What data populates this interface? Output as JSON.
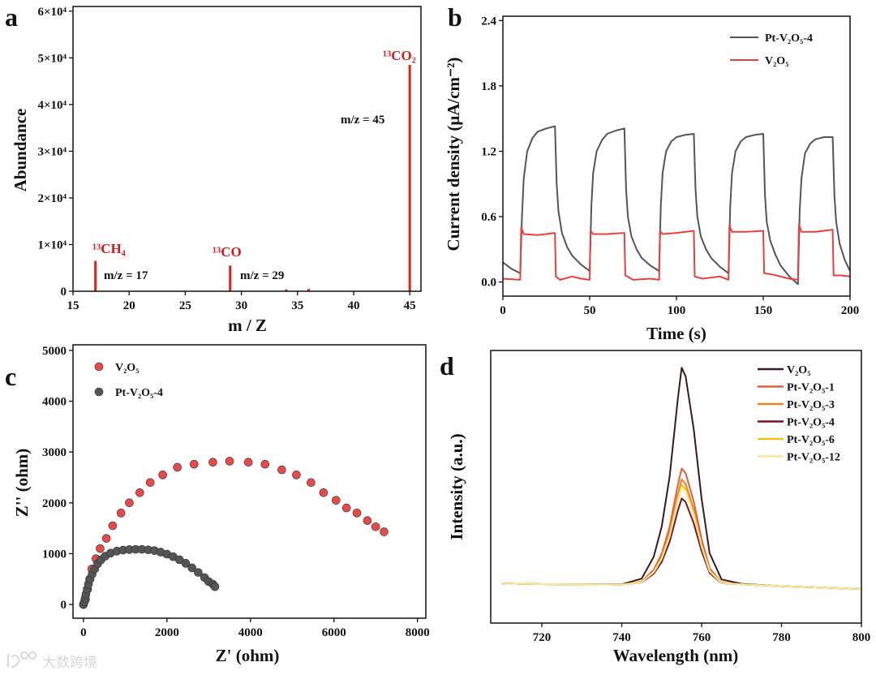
{
  "panel_letters": [
    "a",
    "b",
    "c",
    "d"
  ],
  "watermark": "大数跨境",
  "annotations_a": {
    "ch4": "¹³CH₄",
    "ch4_mz": "m/z = 17",
    "co": "¹³CO",
    "co_mz": "m/z = 29",
    "co2": "¹³CO₂",
    "co2_mz": "m/z = 45"
  },
  "chart_data": [
    {
      "type": "bar",
      "panel": "a",
      "xlabel": "m / Z",
      "ylabel": "Abundance",
      "xlim": [
        15,
        46
      ],
      "ylim": [
        0,
        61000
      ],
      "xticks": [
        15,
        20,
        25,
        30,
        35,
        40,
        45
      ],
      "xtick_labels": [
        "15",
        "20",
        "25",
        "30",
        "35",
        "40",
        "45"
      ],
      "yticks": [
        0,
        10000,
        20000,
        30000,
        40000,
        50000,
        60000
      ],
      "ytick_labels": [
        "0",
        "1×10⁴",
        "2×10⁴",
        "3×10⁴",
        "4×10⁴",
        "5×10⁴",
        "6×10⁴"
      ],
      "series": [
        {
          "name": "abundance",
          "color": "#e0201a",
          "x": [
            17,
            29,
            34,
            36,
            45
          ],
          "y": [
            6500,
            5500,
            400,
            500,
            48500
          ]
        }
      ]
    },
    {
      "type": "line",
      "panel": "b",
      "xlabel": "Time (s)",
      "ylabel": "Current density (μA/cm⁻²)",
      "xlim": [
        0,
        200
      ],
      "ylim": [
        -0.13,
        2.44
      ],
      "xticks": [
        0,
        50,
        100,
        150,
        200
      ],
      "xtick_labels": [
        "0",
        "50",
        "100",
        "150",
        "200"
      ],
      "yticks": [
        0,
        0.6,
        1.2,
        1.8,
        2.4
      ],
      "ytick_labels": [
        "0.0",
        "0.6",
        "1.2",
        "1.8",
        "2.4"
      ],
      "legend": "top-right",
      "series": [
        {
          "name": "Pt-V₂O₅-4",
          "color": "#555555",
          "x": [
            0,
            5,
            10,
            11,
            12,
            14,
            17,
            20,
            25,
            30,
            31,
            32,
            34,
            37,
            40,
            45,
            50,
            51,
            52,
            54,
            57,
            60,
            65,
            70,
            71,
            72,
            74,
            77,
            80,
            85,
            90,
            91,
            92,
            94,
            97,
            100,
            105,
            110,
            111,
            112,
            114,
            117,
            120,
            125,
            130,
            131,
            132,
            134,
            137,
            140,
            145,
            150,
            151,
            152,
            154,
            157,
            160,
            165,
            170,
            171,
            172,
            174,
            177,
            180,
            185,
            190,
            191,
            192,
            194,
            197,
            200
          ],
          "y": [
            0.18,
            0.12,
            0.08,
            0.6,
            0.95,
            1.2,
            1.32,
            1.38,
            1.41,
            1.43,
            0.9,
            0.65,
            0.45,
            0.32,
            0.24,
            0.16,
            0.1,
            0.7,
            1.0,
            1.2,
            1.3,
            1.36,
            1.39,
            1.41,
            0.85,
            0.6,
            0.42,
            0.3,
            0.22,
            0.15,
            0.1,
            0.7,
            1.0,
            1.2,
            1.29,
            1.33,
            1.35,
            1.36,
            0.85,
            0.6,
            0.42,
            0.3,
            0.22,
            0.14,
            0.08,
            0.7,
            1.0,
            1.2,
            1.29,
            1.33,
            1.35,
            1.36,
            0.8,
            0.55,
            0.38,
            0.25,
            0.15,
            0.05,
            -0.02,
            0.65,
            0.95,
            1.18,
            1.27,
            1.31,
            1.33,
            1.33,
            0.8,
            0.55,
            0.35,
            0.2,
            0.1
          ]
        },
        {
          "name": "V₂O₅",
          "color": "#e8413c",
          "x": [
            0,
            9.9,
            10,
            10.5,
            12,
            20,
            30,
            30.5,
            33,
            40,
            45,
            50,
            50.5,
            52,
            60,
            70,
            70.5,
            75,
            85,
            90,
            90.5,
            92,
            100,
            110,
            110.5,
            115,
            125,
            130,
            130.5,
            132,
            140,
            150,
            150.5,
            155,
            165,
            170,
            170.5,
            172,
            180,
            190,
            190.5,
            195,
            200
          ],
          "y": [
            0.03,
            0.02,
            0.03,
            0.5,
            0.44,
            0.43,
            0.45,
            0.05,
            0.02,
            0.05,
            0.03,
            0.02,
            0.47,
            0.44,
            0.44,
            0.45,
            0.06,
            0.02,
            0.03,
            0.02,
            0.47,
            0.44,
            0.45,
            0.47,
            0.05,
            0.03,
            0.05,
            0.02,
            0.52,
            0.46,
            0.46,
            0.47,
            0.08,
            0.07,
            0.03,
            0.02,
            0.53,
            0.46,
            0.46,
            0.48,
            0.06,
            0.06,
            0.05
          ]
        }
      ]
    },
    {
      "type": "scatter",
      "panel": "c",
      "xlabel": "Z' (ohm)",
      "ylabel": "Z'' (ohm)",
      "xlim": [
        -250,
        8200
      ],
      "ylim": [
        -270,
        5110
      ],
      "xticks": [
        0,
        2000,
        4000,
        6000,
        8000
      ],
      "xtick_labels": [
        "0",
        "2000",
        "4000",
        "6000",
        "8000"
      ],
      "yticks": [
        0,
        1000,
        2000,
        3000,
        4000,
        5000
      ],
      "ytick_labels": [
        "0",
        "1000",
        "2000",
        "3000",
        "4000",
        "5000"
      ],
      "legend": "top-left",
      "series": [
        {
          "name": "V₂O₅",
          "color": "#e84a4a",
          "x": [
            0,
            50,
            100,
            150,
            200,
            300,
            400,
            550,
            700,
            900,
            1100,
            1350,
            1600,
            1900,
            2250,
            2650,
            3100,
            3500,
            3950,
            4350,
            4750,
            5100,
            5450,
            5750,
            6050,
            6300,
            6550,
            6800,
            7000,
            7200
          ],
          "y": [
            0,
            100,
            300,
            500,
            700,
            900,
            1100,
            1300,
            1550,
            1800,
            2000,
            2200,
            2400,
            2550,
            2700,
            2760,
            2800,
            2820,
            2800,
            2760,
            2650,
            2550,
            2400,
            2200,
            2050,
            1900,
            1800,
            1650,
            1530,
            1430
          ]
        },
        {
          "name": "Pt-V₂O₅-4",
          "color": "#555555",
          "x": [
            0,
            20,
            40,
            60,
            90,
            120,
            160,
            210,
            270,
            340,
            420,
            520,
            650,
            800,
            950,
            1100,
            1250,
            1400,
            1550,
            1700,
            1850,
            2000,
            2150,
            2300,
            2450,
            2600,
            2750,
            2900,
            3000,
            3100,
            3150
          ],
          "y": [
            0,
            50,
            120,
            200,
            300,
            400,
            500,
            600,
            700,
            800,
            880,
            950,
            1010,
            1050,
            1070,
            1080,
            1085,
            1085,
            1075,
            1060,
            1030,
            990,
            940,
            880,
            810,
            720,
            630,
            530,
            450,
            400,
            350
          ]
        }
      ]
    },
    {
      "type": "line",
      "panel": "d",
      "xlabel": "Wavelength (nm)",
      "ylabel": "Intensity (a.u.)",
      "xlim": [
        707.2,
        800
      ],
      "ylim": [
        0,
        1
      ],
      "xticks": [
        720,
        740,
        760,
        780,
        800
      ],
      "xtick_labels": [
        "720",
        "740",
        "760",
        "780",
        "800"
      ],
      "yticks": [],
      "ytick_labels": [],
      "legend": "top-right",
      "x": [
        710,
        720,
        730,
        740,
        745,
        748,
        750,
        752,
        754,
        755,
        756,
        758,
        760,
        762,
        765,
        770,
        780,
        790,
        800
      ],
      "series": [
        {
          "name": "V₂O₅",
          "color": "#3a1a1a",
          "y": [
            0.145,
            0.143,
            0.142,
            0.142,
            0.163,
            0.243,
            0.354,
            0.538,
            0.818,
            0.937,
            0.905,
            0.713,
            0.456,
            0.256,
            0.16,
            0.144,
            0.135,
            0.13,
            0.125
          ]
        },
        {
          "name": "Pt-V₂O₅-1",
          "color": "#e0603e",
          "y": [
            0.145,
            0.143,
            0.142,
            0.141,
            0.152,
            0.195,
            0.254,
            0.353,
            0.504,
            0.567,
            0.55,
            0.447,
            0.308,
            0.201,
            0.149,
            0.142,
            0.135,
            0.13,
            0.125
          ]
        },
        {
          "name": "Pt-V₂O₅-3",
          "color": "#ea8420",
          "y": [
            0.145,
            0.143,
            0.142,
            0.141,
            0.151,
            0.19,
            0.243,
            0.333,
            0.47,
            0.527,
            0.511,
            0.418,
            0.292,
            0.195,
            0.148,
            0.142,
            0.135,
            0.13,
            0.125
          ]
        },
        {
          "name": "Pt-V₂O₅-4",
          "color": "#7a1424",
          "y": [
            0.145,
            0.143,
            0.142,
            0.141,
            0.149,
            0.181,
            0.224,
            0.298,
            0.41,
            0.457,
            0.444,
            0.367,
            0.264,
            0.184,
            0.146,
            0.142,
            0.135,
            0.13,
            0.125
          ]
        },
        {
          "name": "Pt-V₂O₅-6",
          "color": "#f0c020",
          "y": [
            0.145,
            0.143,
            0.142,
            0.141,
            0.15,
            0.187,
            0.238,
            0.323,
            0.453,
            0.507,
            0.492,
            0.403,
            0.284,
            0.192,
            0.147,
            0.142,
            0.135,
            0.13,
            0.125
          ]
        },
        {
          "name": "Pt-V₂O₅-12",
          "color": "#f6ea9a",
          "y": [
            0.145,
            0.143,
            0.142,
            0.141,
            0.15,
            0.186,
            0.235,
            0.318,
            0.444,
            0.497,
            0.483,
            0.396,
            0.28,
            0.19,
            0.147,
            0.142,
            0.135,
            0.13,
            0.125
          ]
        }
      ]
    }
  ]
}
